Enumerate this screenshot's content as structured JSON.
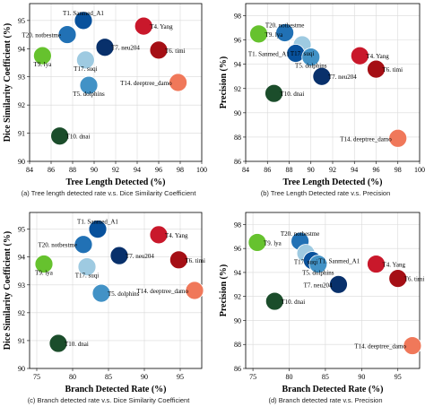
{
  "colors": {
    "T1": "#08519c",
    "T2": "#2171b5",
    "T5": "#4292c6",
    "T17": "#9ecae1",
    "T9": "#66c22e",
    "T7": "#08306b",
    "T4": "#c9182b",
    "T6": "#a50f15",
    "T10": "#1b4d2b",
    "T14": "#f0785a"
  },
  "chart_data": [
    {
      "type": "scatter",
      "caption": "(a)  Tree length detected rate v.s. Dice Similarity Coefficient",
      "xlabel": "Tree Length Detected (%)",
      "ylabel": "Dice Similarity Coefficient (%)",
      "xlim": [
        84,
        100
      ],
      "ylim": [
        90,
        95.6
      ],
      "xticks": [
        "84",
        "86",
        "88",
        "90",
        "92",
        "94",
        "96",
        "98",
        "100"
      ],
      "yticks": [
        "90",
        "91",
        "92",
        "93",
        "94",
        "95"
      ],
      "grid": true,
      "points": [
        {
          "id": "T1",
          "label": "T1. Sanmed_A1",
          "x": 89.0,
          "y": 95.0,
          "label_pos": "up"
        },
        {
          "id": "T2",
          "label": "T20. notbestme",
          "x": 87.5,
          "y": 94.5,
          "label_pos": "left"
        },
        {
          "id": "T9",
          "label": "T9. lya",
          "x": 85.2,
          "y": 93.75,
          "label_pos": "below"
        },
        {
          "id": "T17",
          "label": "T17. suqi",
          "x": 89.2,
          "y": 93.6,
          "label_pos": "below"
        },
        {
          "id": "T7",
          "label": "T7. neu204",
          "x": 91.0,
          "y": 94.05,
          "label_pos": "right"
        },
        {
          "id": "T4",
          "label": "T4. Yang",
          "x": 94.6,
          "y": 94.8,
          "label_pos": "right"
        },
        {
          "id": "T6",
          "label": "T6. timi",
          "x": 96.0,
          "y": 93.95,
          "label_pos": "right"
        },
        {
          "id": "T5",
          "label": "T5. dolphins",
          "x": 89.5,
          "y": 92.7,
          "label_pos": "below"
        },
        {
          "id": "T14",
          "label": "T14. deeptree_damo",
          "x": 97.8,
          "y": 92.8,
          "label_pos": "left"
        },
        {
          "id": "T10",
          "label": "T10. dnai",
          "x": 86.8,
          "y": 90.9,
          "label_pos": "right"
        }
      ]
    },
    {
      "type": "scatter",
      "caption": "(b)  Tree Length Detected rate v.s. Precision",
      "xlabel": "Tree Length Detected (%)",
      "ylabel": "Precision (%)",
      "xlim": [
        84,
        100
      ],
      "ylim": [
        86,
        99
      ],
      "xticks": [
        "84",
        "86",
        "88",
        "90",
        "92",
        "94",
        "96",
        "98",
        "100"
      ],
      "yticks": [
        "86",
        "88",
        "90",
        "92",
        "94",
        "96",
        "98"
      ],
      "grid": true,
      "points": [
        {
          "id": "T9",
          "label": "T9. lya",
          "x": 85.2,
          "y": 96.5,
          "label_pos": "right"
        },
        {
          "id": "T2",
          "label": "T20. notbestme",
          "x": 87.6,
          "y": 96.6,
          "label_pos": "up"
        },
        {
          "id": "T17",
          "label": "T17. suqi",
          "x": 89.2,
          "y": 95.6,
          "label_pos": "below"
        },
        {
          "id": "T1",
          "label": "T1. Sanmed_A1",
          "x": 88.6,
          "y": 94.9,
          "label_pos": "left"
        },
        {
          "id": "T5",
          "label": "T5. dolphins",
          "x": 90.0,
          "y": 94.6,
          "label_pos": "below"
        },
        {
          "id": "T7",
          "label": "T7. neu204",
          "x": 91.0,
          "y": 93.0,
          "label_pos": "right"
        },
        {
          "id": "T4",
          "label": "T4. Yang",
          "x": 94.5,
          "y": 94.7,
          "label_pos": "right"
        },
        {
          "id": "T6",
          "label": "T6. timi",
          "x": 96.0,
          "y": 93.6,
          "label_pos": "right"
        },
        {
          "id": "T10",
          "label": "T10. dnai",
          "x": 86.6,
          "y": 91.6,
          "label_pos": "right"
        },
        {
          "id": "T14",
          "label": "T14. deeptree_damo",
          "x": 98.0,
          "y": 87.9,
          "label_pos": "left"
        }
      ]
    },
    {
      "type": "scatter",
      "caption": "(c)  Branch detected rate v.s. Dice Similarity Coefficient",
      "xlabel": "Branch Detected Rate (%)",
      "ylabel": "Dice Similarity Coefficient (%)",
      "xlim": [
        74,
        98
      ],
      "ylim": [
        90,
        95.6
      ],
      "xticks": [
        "75",
        "80",
        "85",
        "90",
        "95"
      ],
      "yticks": [
        "90",
        "91",
        "92",
        "93",
        "94",
        "95"
      ],
      "grid": true,
      "points": [
        {
          "id": "T1",
          "label": "T1. Sanmed_A1",
          "x": 83.5,
          "y": 95.0,
          "label_pos": "up"
        },
        {
          "id": "T2",
          "label": "T20. notbestme",
          "x": 81.5,
          "y": 94.45,
          "label_pos": "left"
        },
        {
          "id": "T9",
          "label": "T9. lya",
          "x": 76.0,
          "y": 93.75,
          "label_pos": "below"
        },
        {
          "id": "T17",
          "label": "T17. suqi",
          "x": 82.0,
          "y": 93.65,
          "label_pos": "below"
        },
        {
          "id": "T7",
          "label": "T7. neu204",
          "x": 86.5,
          "y": 94.05,
          "label_pos": "right"
        },
        {
          "id": "T4",
          "label": "T4. Yang",
          "x": 92.0,
          "y": 94.8,
          "label_pos": "right"
        },
        {
          "id": "T6",
          "label": "T6. timi",
          "x": 94.8,
          "y": 93.9,
          "label_pos": "right"
        },
        {
          "id": "T5",
          "label": "T5. dolphins",
          "x": 84.0,
          "y": 92.7,
          "label_pos": "right"
        },
        {
          "id": "T14",
          "label": "T14. deeptree_damo",
          "x": 97.0,
          "y": 92.8,
          "label_pos": "left"
        },
        {
          "id": "T10",
          "label": "T10. dnai",
          "x": 78.0,
          "y": 90.9,
          "label_pos": "right"
        }
      ]
    },
    {
      "type": "scatter",
      "caption": "(d)  Branch detected rate v.s. Precision",
      "xlabel": "Branch Detected Rate (%)",
      "ylabel": "Precision (%)",
      "xlim": [
        74,
        98
      ],
      "ylim": [
        86,
        99
      ],
      "xticks": [
        "75",
        "80",
        "85",
        "90",
        "95"
      ],
      "yticks": [
        "86",
        "88",
        "90",
        "92",
        "94",
        "96",
        "98"
      ],
      "grid": true,
      "points": [
        {
          "id": "T9",
          "label": "T9. lya",
          "x": 75.6,
          "y": 96.5,
          "label_pos": "right"
        },
        {
          "id": "T2",
          "label": "T20. notbestme",
          "x": 81.5,
          "y": 96.6,
          "label_pos": "up"
        },
        {
          "id": "T17",
          "label": "T17. suqi",
          "x": 82.3,
          "y": 95.6,
          "label_pos": "below"
        },
        {
          "id": "T1",
          "label": "T1. Sanmed_A1",
          "x": 83.2,
          "y": 95.0,
          "label_pos": "right"
        },
        {
          "id": "T5",
          "label": "T5. dolphins",
          "x": 84.0,
          "y": 94.7,
          "label_pos": "below"
        },
        {
          "id": "T7",
          "label": "T7. neu204",
          "x": 86.8,
          "y": 93.0,
          "label_pos": "left"
        },
        {
          "id": "T4",
          "label": "T4. Yang",
          "x": 92.0,
          "y": 94.7,
          "label_pos": "right"
        },
        {
          "id": "T6",
          "label": "T6. timi",
          "x": 95.0,
          "y": 93.5,
          "label_pos": "right"
        },
        {
          "id": "T10",
          "label": "T10. dnai",
          "x": 78.0,
          "y": 91.6,
          "label_pos": "right"
        },
        {
          "id": "T14",
          "label": "T14. deeptree_damo",
          "x": 97.0,
          "y": 87.9,
          "label_pos": "left"
        }
      ]
    }
  ]
}
